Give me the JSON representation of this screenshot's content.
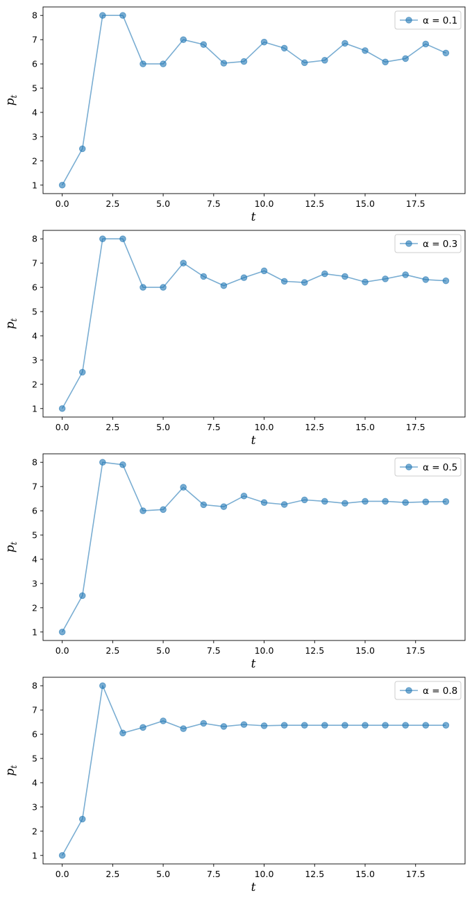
{
  "chart_data": [
    {
      "type": "line",
      "xlabel": "t",
      "ylabel_base": "p",
      "ylabel_sub": "t",
      "xticks": [
        "0.0",
        "2.5",
        "5.0",
        "7.5",
        "10.0",
        "12.5",
        "15.0",
        "17.5"
      ],
      "yticks": [
        "1",
        "2",
        "3",
        "4",
        "5",
        "6",
        "7",
        "8"
      ],
      "xlim": [
        -0.95,
        19.95
      ],
      "ylim": [
        0.65,
        8.35
      ],
      "legend_position": "top-right",
      "series": [
        {
          "name": "α = 0.1",
          "color": "#1f77b4",
          "x": [
            0,
            1,
            2,
            3,
            4,
            5,
            6,
            7,
            8,
            9,
            10,
            11,
            12,
            13,
            14,
            15,
            16,
            17,
            18,
            19
          ],
          "values": [
            1.0,
            2.5,
            8.0,
            8.0,
            6.0,
            6.0,
            7.0,
            6.8,
            6.03,
            6.1,
            6.9,
            6.65,
            6.05,
            6.15,
            6.85,
            6.55,
            6.08,
            6.22,
            6.82,
            6.45
          ]
        }
      ]
    },
    {
      "type": "line",
      "xlabel": "t",
      "ylabel_base": "p",
      "ylabel_sub": "t",
      "xticks": [
        "0.0",
        "2.5",
        "5.0",
        "7.5",
        "10.0",
        "12.5",
        "15.0",
        "17.5"
      ],
      "yticks": [
        "1",
        "2",
        "3",
        "4",
        "5",
        "6",
        "7",
        "8"
      ],
      "xlim": [
        -0.95,
        19.95
      ],
      "ylim": [
        0.65,
        8.35
      ],
      "legend_position": "top-right",
      "series": [
        {
          "name": "α = 0.3",
          "color": "#1f77b4",
          "x": [
            0,
            1,
            2,
            3,
            4,
            5,
            6,
            7,
            8,
            9,
            10,
            11,
            12,
            13,
            14,
            15,
            16,
            17,
            18,
            19
          ],
          "values": [
            1.0,
            2.5,
            8.0,
            8.0,
            6.0,
            6.0,
            7.0,
            6.45,
            6.07,
            6.4,
            6.68,
            6.25,
            6.2,
            6.56,
            6.45,
            6.22,
            6.35,
            6.52,
            6.32,
            6.27
          ]
        }
      ]
    },
    {
      "type": "line",
      "xlabel": "t",
      "ylabel_base": "p",
      "ylabel_sub": "t",
      "xticks": [
        "0.0",
        "2.5",
        "5.0",
        "7.5",
        "10.0",
        "12.5",
        "15.0",
        "17.5"
      ],
      "yticks": [
        "1",
        "2",
        "3",
        "4",
        "5",
        "6",
        "7",
        "8"
      ],
      "xlim": [
        -0.95,
        19.95
      ],
      "ylim": [
        0.65,
        8.35
      ],
      "legend_position": "top-right",
      "series": [
        {
          "name": "α = 0.5",
          "color": "#1f77b4",
          "x": [
            0,
            1,
            2,
            3,
            4,
            5,
            6,
            7,
            8,
            9,
            10,
            11,
            12,
            13,
            14,
            15,
            16,
            17,
            18,
            19
          ],
          "values": [
            1.0,
            2.5,
            8.0,
            7.9,
            6.0,
            6.05,
            6.97,
            6.25,
            6.17,
            6.61,
            6.34,
            6.26,
            6.45,
            6.39,
            6.31,
            6.39,
            6.39,
            6.34,
            6.37,
            6.38
          ]
        }
      ]
    },
    {
      "type": "line",
      "xlabel": "t",
      "ylabel_base": "p",
      "ylabel_sub": "t",
      "xticks": [
        "0.0",
        "2.5",
        "5.0",
        "7.5",
        "10.0",
        "12.5",
        "15.0",
        "17.5"
      ],
      "yticks": [
        "1",
        "2",
        "3",
        "4",
        "5",
        "6",
        "7",
        "8"
      ],
      "xlim": [
        -0.95,
        19.95
      ],
      "ylim": [
        0.65,
        8.35
      ],
      "legend_position": "top-right",
      "series": [
        {
          "name": "α = 0.8",
          "color": "#1f77b4",
          "x": [
            0,
            1,
            2,
            3,
            4,
            5,
            6,
            7,
            8,
            9,
            10,
            11,
            12,
            13,
            14,
            15,
            16,
            17,
            18,
            19
          ],
          "values": [
            1.0,
            2.5,
            8.0,
            6.05,
            6.28,
            6.55,
            6.23,
            6.45,
            6.32,
            6.4,
            6.35,
            6.37,
            6.37,
            6.37,
            6.37,
            6.37,
            6.37,
            6.37,
            6.37,
            6.37
          ]
        }
      ]
    }
  ]
}
